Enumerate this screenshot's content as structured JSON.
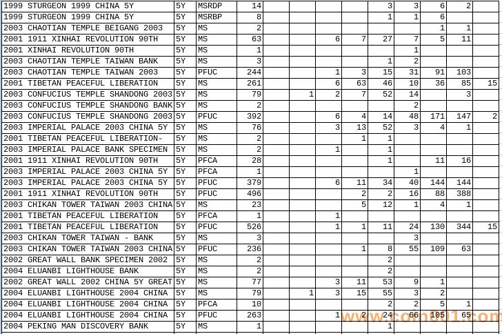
{
  "watermark": "www.coin001.com",
  "colors": {
    "grid": "#000000",
    "text": "#000000",
    "background": "#ffffff",
    "left_edge_strip": "#b3c2de",
    "outside_gridline": "#bcc9e2",
    "watermark": "#f5a158"
  },
  "table": {
    "columns": [
      "description",
      "denomination",
      "grade",
      "total",
      "count1",
      "count2",
      "count3",
      "count4",
      "count5",
      "count6",
      "count7",
      "count8",
      "count9"
    ],
    "rows": [
      {
        "desc": "1999 STURGEON 1999 CHINA 5Y",
        "denom": "5Y",
        "grade": "MSRDP",
        "total": "14",
        "cells": [
          "",
          "",
          "",
          "",
          "3",
          "3",
          "6",
          "2",
          ""
        ]
      },
      {
        "desc": "1999 STURGEON 1999 CHINA 5Y",
        "denom": "5Y",
        "grade": "MSRBP",
        "total": "8",
        "cells": [
          "",
          "",
          "",
          "",
          "1",
          "1",
          "6",
          "",
          ""
        ]
      },
      {
        "desc": "2003 CHAOTIAN TEMPLE BEIGANG 2003",
        "denom": "5Y",
        "grade": "MS",
        "total": "2",
        "cells": [
          "",
          "",
          "",
          "",
          "",
          "",
          "1",
          "1",
          ""
        ]
      },
      {
        "desc": "2001 1911 XINHAI REVOLUTION 90TH",
        "denom": "5Y",
        "grade": "MS",
        "total": "63",
        "cells": [
          "",
          "",
          "6",
          "7",
          "27",
          "7",
          "5",
          "11",
          ""
        ]
      },
      {
        "desc": "2001 XINHAI REVOLUTION 90TH",
        "denom": "5Y",
        "grade": "MS",
        "total": "1",
        "cells": [
          "",
          "",
          "",
          "",
          "",
          "1",
          "",
          "",
          ""
        ]
      },
      {
        "desc": "2003 CHAOTIAN TEMPLE TAIWAN BANK",
        "denom": "5Y",
        "grade": "MS",
        "total": "3",
        "cells": [
          "",
          "",
          "",
          "",
          "1",
          "2",
          "",
          "",
          ""
        ]
      },
      {
        "desc": "2003 CHAOTIAN TEMPLE TAIWAN 2003",
        "denom": "5Y",
        "grade": "PFUC",
        "total": "244",
        "cells": [
          "",
          "",
          "1",
          "3",
          "15",
          "31",
          "91",
          "103",
          ""
        ]
      },
      {
        "desc": "2001 TIBETAN PEACEFUL LIBERATION",
        "denom": "5Y",
        "grade": "MS",
        "total": "261",
        "cells": [
          "",
          "",
          "6",
          "63",
          "46",
          "10",
          "36",
          "85",
          "15"
        ]
      },
      {
        "desc": "2003 CONFUCIUS TEMPLE SHANDONG 2003",
        "denom": "5Y",
        "grade": "MS",
        "total": "79",
        "cells": [
          "",
          "1",
          "2",
          "7",
          "52",
          "14",
          "",
          "3",
          ""
        ]
      },
      {
        "desc": "2003 CONFUCIUS TEMPLE SHANDONG BANK",
        "denom": "5Y",
        "grade": "MS",
        "total": "2",
        "cells": [
          "",
          "",
          "",
          "",
          "",
          "2",
          "",
          "",
          ""
        ]
      },
      {
        "desc": "2003 CONFUCIUS TEMPLE SHANDONG 2003",
        "denom": "5Y",
        "grade": "PFUC",
        "total": "392",
        "cells": [
          "",
          "",
          "6",
          "4",
          "14",
          "48",
          "171",
          "147",
          "2"
        ]
      },
      {
        "desc": "2003 IMPERIAL PALACE 2003 CHINA 5Y",
        "denom": "5Y",
        "grade": "MS",
        "total": "76",
        "cells": [
          "",
          "",
          "3",
          "13",
          "52",
          "3",
          "4",
          "1",
          ""
        ]
      },
      {
        "desc": "2001 TIBETAN PEACEFUL LIBERATION-",
        "denom": "5Y",
        "grade": "MS",
        "total": "2",
        "cells": [
          "",
          "",
          "",
          "1",
          "1",
          "",
          "",
          "",
          ""
        ]
      },
      {
        "desc": "2003 IMPERIAL PALACE BANK SPECIMEN",
        "denom": "5Y",
        "grade": "MS",
        "total": "2",
        "cells": [
          "",
          "",
          "1",
          "",
          "1",
          "",
          "",
          "",
          ""
        ]
      },
      {
        "desc": "2001 1911 XINHAI REVOLUTION 90TH",
        "denom": "5Y",
        "grade": "PFCA",
        "total": "28",
        "cells": [
          "",
          "",
          "",
          "",
          "1",
          "",
          "11",
          "16",
          ""
        ]
      },
      {
        "desc": "2003 IMPERIAL PALACE 2003 CHINA 5Y",
        "denom": "5Y",
        "grade": "PFCA",
        "total": "1",
        "cells": [
          "",
          "",
          "",
          "",
          "",
          "1",
          "",
          "",
          ""
        ]
      },
      {
        "desc": "2003 IMPERIAL PALACE 2003 CHINA 5Y",
        "denom": "5Y",
        "grade": "PFUC",
        "total": "379",
        "cells": [
          "",
          "",
          "6",
          "11",
          "34",
          "40",
          "144",
          "144",
          ""
        ]
      },
      {
        "desc": "2001 1911 XINHAI REVOLUTION 90TH",
        "denom": "5Y",
        "grade": "PFUC",
        "total": "496",
        "cells": [
          "",
          "",
          "",
          "2",
          "2",
          "16",
          "88",
          "388",
          ""
        ]
      },
      {
        "desc": "2003 CHIKAN TOWER TAIWAN 2003 CHINA",
        "denom": "5Y",
        "grade": "MS",
        "total": "23",
        "cells": [
          "",
          "",
          "",
          "5",
          "12",
          "1",
          "4",
          "1",
          ""
        ]
      },
      {
        "desc": "2001 TIBETAN PEACEFUL LIBERATION",
        "denom": "5Y",
        "grade": "PFCA",
        "total": "1",
        "cells": [
          "",
          "",
          "1",
          "",
          "",
          "",
          "",
          "",
          ""
        ]
      },
      {
        "desc": "2001 TIBETAN PEACEFUL LIBERATION",
        "denom": "5Y",
        "grade": "PFUC",
        "total": "526",
        "cells": [
          "",
          "",
          "1",
          "1",
          "11",
          "24",
          "130",
          "344",
          "15"
        ]
      },
      {
        "desc": "2003 CHIKAN TOWER TAIWAN - BANK",
        "denom": "5Y",
        "grade": "MS",
        "total": "3",
        "cells": [
          "",
          "",
          "",
          "",
          "",
          "3",
          "",
          "",
          ""
        ]
      },
      {
        "desc": "2003 CHIKAN TOWER TAIWAN 2003 CHINA",
        "denom": "5Y",
        "grade": "PFUC",
        "total": "236",
        "cells": [
          "",
          "",
          "",
          "1",
          "8",
          "55",
          "109",
          "63",
          ""
        ]
      },
      {
        "desc": "2002 GREAT WALL BANK SPECIMEN 2002",
        "denom": "5Y",
        "grade": "MS",
        "total": "2",
        "cells": [
          "",
          "",
          "",
          "",
          "2",
          "",
          "",
          "",
          ""
        ]
      },
      {
        "desc": "2004 ELUANBI LIGHTHOUSE BANK",
        "denom": "5Y",
        "grade": "MS",
        "total": "2",
        "cells": [
          "",
          "",
          "",
          "",
          "2",
          "",
          "",
          "",
          ""
        ]
      },
      {
        "desc": "2002 GREAT WALL 2002 CHINA 5Y GREAT",
        "denom": "5Y",
        "grade": "MS",
        "total": "77",
        "cells": [
          "",
          "",
          "3",
          "11",
          "53",
          "9",
          "1",
          "",
          ""
        ]
      },
      {
        "desc": "2004 ELUANBI LIGHTHOUSE 2004 CHINA",
        "denom": "5Y",
        "grade": "MS",
        "total": "79",
        "cells": [
          "",
          "1",
          "3",
          "15",
          "55",
          "3",
          "2",
          "",
          ""
        ]
      },
      {
        "desc": "2004 ELUANBI LIGHTHOUSE 2004 CHINA",
        "denom": "5Y",
        "grade": "PFCA",
        "total": "10",
        "cells": [
          "",
          "",
          "",
          "",
          "2",
          "2",
          "5",
          "1",
          ""
        ]
      },
      {
        "desc": "2004 ELUANBI LIGHTHOUSE 2004 CHINA",
        "denom": "5Y",
        "grade": "PFUC",
        "total": "263",
        "cells": [
          "",
          "",
          "1",
          "2",
          "24",
          "66",
          "105",
          "65",
          ""
        ]
      },
      {
        "desc": "2004 PEKING MAN DISCOVERY BANK",
        "denom": "5Y",
        "grade": "MS",
        "total": "1",
        "cells": [
          "",
          "",
          "",
          "",
          "1",
          "",
          "",
          "",
          ""
        ]
      }
    ]
  }
}
